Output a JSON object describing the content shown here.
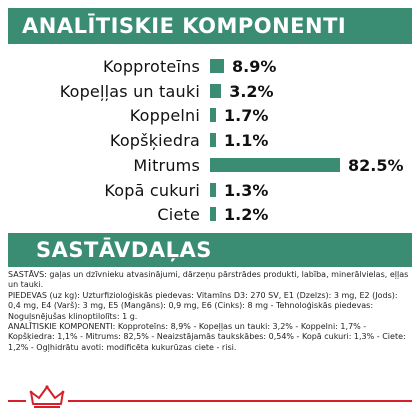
{
  "composition_heading": "ANALĪTISKIE KOMPONENTI",
  "ingredients_heading": "SASTĀVDAĻAS",
  "chart_data": {
    "type": "bar",
    "title": "ANALĪTISKIE KOMPONENTI",
    "categories": [
      "Kopproteīns",
      "Kopeļļas un tauki",
      "Koppelni",
      "Kopšķiedra",
      "Mitrums",
      "Kopā cukuri",
      "Ciete"
    ],
    "values": [
      8.9,
      3.2,
      1.7,
      1.1,
      82.5,
      1.3,
      1.2
    ],
    "value_labels": [
      "8.9%",
      "3.2%",
      "1.7%",
      "1.1%",
      "82.5%",
      "1.3%",
      "1.2%"
    ],
    "xlabel": "",
    "ylabel": "",
    "bar_color": "#3a8c72",
    "orientation": "horizontal"
  },
  "ingredients_text": [
    "SASTĀVS: gaļas un dzīvnieku atvasinājumi, dārzeņu pārstrādes produkti, labība, minerālvielas, eļļas un tauki.",
    "PIEDEVAS (uz kg): Uzturfizioloģiskās piedevas: Vitamīns D3: 270 SV, E1 (Dzelzs): 3 mg, E2 (Jods): 0,4 mg, E4 (Varš): 3 mg, E5 (Mangāns): 0,9 mg, E6 (Cinks): 8 mg - Tehnoloģiskās piedevas: Noguļsnējušas klinoptilolīts: 1 g.",
    "ANALĪTISKIE KOMPONENTI: Kopproteīns: 8,9% - Kopeļļas un tauki: 3,2% - Koppelni: 1,7% - Kopšķiedra: 1,1% - Mitrums: 82,5% - Neaizstājamās taukskābes: 0,54% - Kopā cukuri: 1,3% - Ciete: 1,2% - Ogļhidrātu avoti: modificēta kukurūzas ciete - risi."
  ],
  "colors": {
    "accent_green": "#3a8c72",
    "brand_red": "#d6202a"
  },
  "logo": "crown-logo"
}
